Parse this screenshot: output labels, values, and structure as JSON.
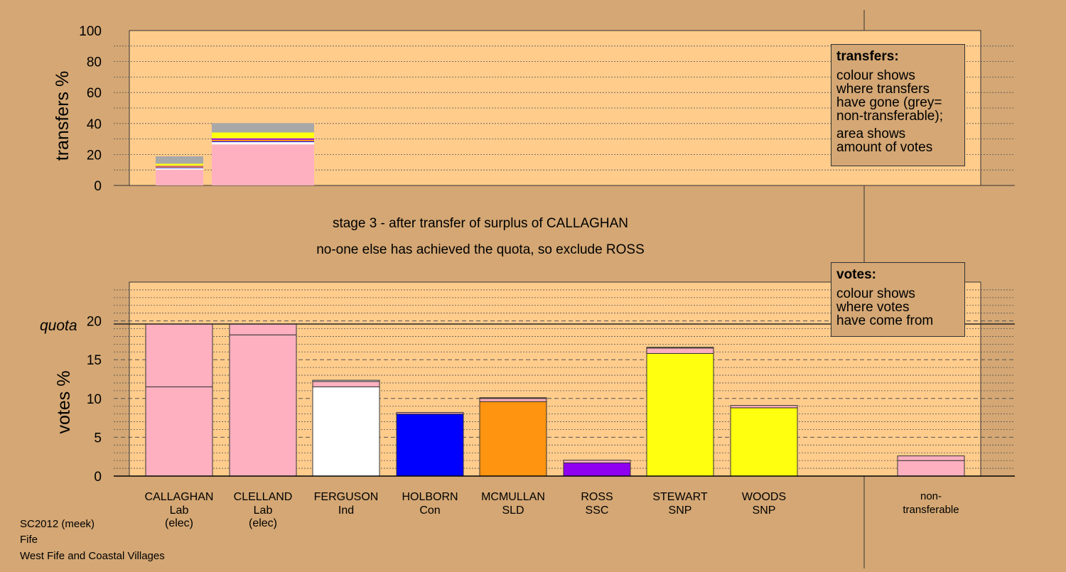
{
  "captions": {
    "stage": "stage 3 - after transfer of surplus of CALLAGHAN",
    "note": "no-one else has achieved the quota, so exclude ROSS"
  },
  "legend_transfers": {
    "title": "transfers:",
    "lines": [
      "colour shows",
      "where transfers",
      "have gone (grey=",
      "non-transferable);",
      "area shows",
      "amount of votes"
    ]
  },
  "legend_votes": {
    "title": "votes:",
    "lines": [
      "colour shows",
      "where votes",
      "have come from"
    ]
  },
  "footer": {
    "line1": "SC2012 (meek)",
    "line2": "Fife",
    "line3": "West Fife and Coastal Villages"
  },
  "colors": {
    "background": "#d4a774",
    "plot": "#ffcc8c",
    "Lab": "#ffb0c0",
    "Ind": "#ffffff",
    "Con": "#0000ff",
    "SLD": "#ff9410",
    "SSC": "#9000f0",
    "SNP": "#ffff10",
    "nontransferable": "#a8a8a8"
  },
  "chart_data": [
    {
      "type": "bar",
      "ylabel": "transfers %",
      "ylim": [
        0,
        100
      ],
      "yticks": [
        0,
        20,
        40,
        60,
        80,
        100
      ],
      "bars": [
        {
          "stack": [
            {
              "party": "Lab",
              "value": 10.2
            },
            {
              "party": "Ind",
              "value": 1.0
            },
            {
              "party": "Con",
              "value": 0.4
            },
            {
              "party": "SLD",
              "value": 0.6
            },
            {
              "party": "SSC",
              "value": 0.4
            },
            {
              "party": "SNP",
              "value": 1.4
            },
            {
              "party": "nontransferable",
              "value": 4.8
            }
          ]
        },
        {
          "stack": [
            {
              "party": "Lab",
              "value": 26.5
            },
            {
              "party": "Ind",
              "value": 1.5
            },
            {
              "party": "Con",
              "value": 0.5
            },
            {
              "party": "SLD",
              "value": 1.0
            },
            {
              "party": "SSC",
              "value": 0.9
            },
            {
              "party": "SNP",
              "value": 3.8
            },
            {
              "party": "nontransferable",
              "value": 6.0
            }
          ]
        }
      ]
    },
    {
      "type": "bar",
      "ylabel": "votes %",
      "ylim": [
        0,
        25
      ],
      "yticks": [
        0,
        5,
        10,
        15,
        20
      ],
      "quota": 19.6,
      "quota_label": "quota",
      "candidates": [
        {
          "name": "CALLAGHAN",
          "party": "Lab",
          "status": "(elec)",
          "stack": [
            {
              "party": "Lab",
              "value": 11.5
            },
            {
              "party": "Lab",
              "value": 8.1
            }
          ]
        },
        {
          "name": "CLELLAND",
          "party": "Lab",
          "status": "(elec)",
          "stack": [
            {
              "party": "Lab",
              "value": 18.2
            },
            {
              "party": "Lab",
              "value": 1.4
            }
          ]
        },
        {
          "name": "FERGUSON",
          "party": "Ind",
          "status": "",
          "stack": [
            {
              "party": "Ind",
              "value": 11.5
            },
            {
              "party": "Lab",
              "value": 0.7
            },
            {
              "party": "Ind",
              "value": 0.15
            }
          ]
        },
        {
          "name": "HOLBORN",
          "party": "Con",
          "status": "",
          "stack": [
            {
              "party": "Con",
              "value": 8.0
            },
            {
              "party": "Lab",
              "value": 0.2
            }
          ]
        },
        {
          "name": "MCMULLAN",
          "party": "SLD",
          "status": "",
          "stack": [
            {
              "party": "SLD",
              "value": 9.6
            },
            {
              "party": "Lab",
              "value": 0.4
            },
            {
              "party": "SLD",
              "value": 0.1
            }
          ]
        },
        {
          "name": "ROSS",
          "party": "SSC",
          "status": "",
          "stack": [
            {
              "party": "SSC",
              "value": 1.7
            },
            {
              "party": "Lab",
              "value": 0.35
            }
          ]
        },
        {
          "name": "STEWART",
          "party": "SNP",
          "status": "",
          "stack": [
            {
              "party": "SNP",
              "value": 15.8
            },
            {
              "party": "Lab",
              "value": 0.7
            },
            {
              "party": "SNP",
              "value": 0.1
            }
          ]
        },
        {
          "name": "WOODS",
          "party": "SNP",
          "status": "",
          "stack": [
            {
              "party": "SNP",
              "value": 8.8
            },
            {
              "party": "Lab",
              "value": 0.3
            }
          ]
        }
      ],
      "nontransferable": {
        "line1": "non-",
        "line2": "transferable",
        "stack": [
          {
            "party": "Lab",
            "value": 2.0
          },
          {
            "party": "Lab",
            "value": 0.6
          }
        ]
      }
    }
  ]
}
